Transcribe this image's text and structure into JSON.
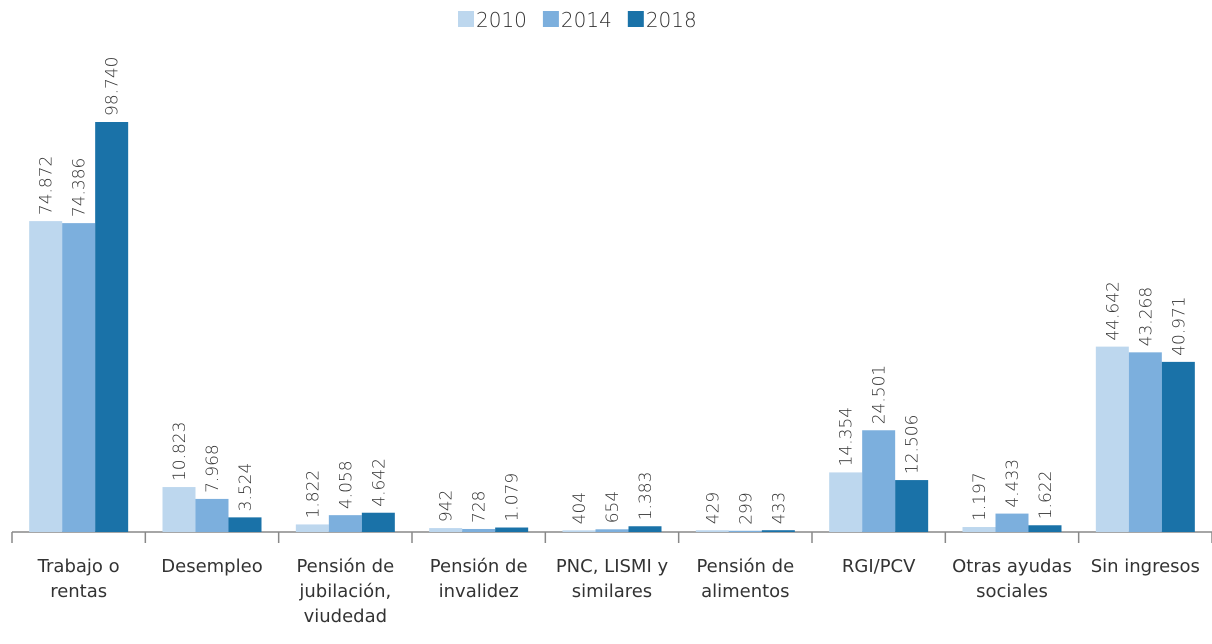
{
  "chart_data": {
    "type": "bar",
    "categories": [
      "Trabajo o rentas",
      "Desempleo",
      "Pensión de jubilación, viudedad",
      "Pensión de invalidez",
      "PNC, LISMI y similares",
      "Pensión de alimentos",
      "RGI/PCV",
      "Otras ayudas sociales",
      "Sin ingresos"
    ],
    "series": [
      {
        "name": "2010",
        "color": "#bdd7ee",
        "values": [
          74872,
          10823,
          1822,
          942,
          404,
          429,
          14354,
          1197,
          44642
        ],
        "value_labels": [
          "74.872",
          "10.823",
          "1.822",
          "942",
          "404",
          "429",
          "14.354",
          "1.197",
          "44.642"
        ]
      },
      {
        "name": "2014",
        "color": "#7cafdd",
        "values": [
          74386,
          7968,
          4058,
          728,
          654,
          299,
          24501,
          4433,
          43268
        ],
        "value_labels": [
          "74.386",
          "7.968",
          "4.058",
          "728",
          "654",
          "299",
          "24.501",
          "4.433",
          "43.268"
        ]
      },
      {
        "name": "2018",
        "color": "#1a72a8",
        "values": [
          98740,
          3524,
          4642,
          1079,
          1383,
          433,
          12506,
          1622,
          40971
        ],
        "value_labels": [
          "98.740",
          "3.524",
          "4.642",
          "1.079",
          "1.383",
          "433",
          "12.506",
          "1.622",
          "40.971"
        ]
      }
    ],
    "legend": "top"
  }
}
